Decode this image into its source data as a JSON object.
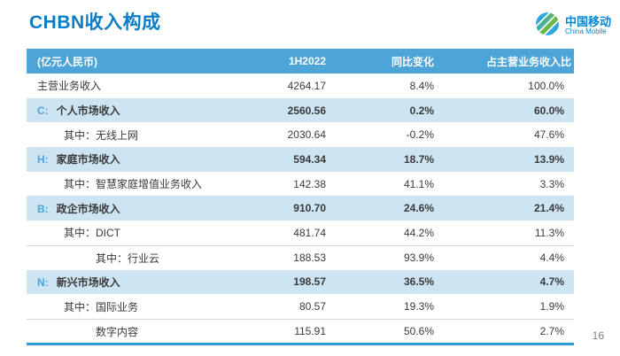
{
  "page": {
    "title": "CHBN收入构成",
    "page_number": "16"
  },
  "logo": {
    "cn": "中国移动",
    "en": "China Mobile",
    "icon": "china-mobile-swirl-logo"
  },
  "colors": {
    "title_blue": "#0b7dc6",
    "header_bg": "#4da4d6",
    "highlight_row_bg": "#cde4f3",
    "bottom_rule": "#2e9fd9",
    "logo_blue": "#0086d0",
    "logo_green": "#6cb84a"
  },
  "table": {
    "headers": [
      "(亿元人民币)",
      "1H2022",
      "同比变化",
      "占主营业务收入比"
    ],
    "rows": [
      {
        "prefix": "",
        "label": "主营业务收入",
        "indent": 0,
        "highlight": false,
        "sep": false,
        "values": [
          "4264.17",
          "8.4%",
          "100.0%"
        ]
      },
      {
        "prefix": "C:",
        "label": "个人市场收入",
        "indent": 0,
        "highlight": true,
        "sep": false,
        "values": [
          "2560.56",
          "0.2%",
          "60.0%"
        ]
      },
      {
        "prefix": "",
        "label": "其中：无线上网",
        "indent": 1,
        "highlight": false,
        "sep": false,
        "values": [
          "2030.64",
          "-0.2%",
          "47.6%"
        ]
      },
      {
        "prefix": "H:",
        "label": "家庭市场收入",
        "indent": 0,
        "highlight": true,
        "sep": false,
        "values": [
          "594.34",
          "18.7%",
          "13.9%"
        ]
      },
      {
        "prefix": "",
        "label": "其中：智慧家庭增值业务收入",
        "indent": 1,
        "highlight": false,
        "sep": false,
        "values": [
          "142.38",
          "41.1%",
          "3.3%"
        ]
      },
      {
        "prefix": "B:",
        "label": "政企市场收入",
        "indent": 0,
        "highlight": true,
        "sep": false,
        "values": [
          "910.70",
          "24.6%",
          "21.4%"
        ]
      },
      {
        "prefix": "",
        "label": "其中：DICT",
        "indent": 1,
        "highlight": false,
        "sep": false,
        "values": [
          "481.74",
          "44.2%",
          "11.3%"
        ]
      },
      {
        "prefix": "",
        "label": "其中：行业云",
        "indent": 2,
        "highlight": false,
        "sep": true,
        "values": [
          "188.53",
          "93.9%",
          "4.4%"
        ]
      },
      {
        "prefix": "N:",
        "label": "新兴市场收入",
        "indent": 0,
        "highlight": true,
        "sep": false,
        "values": [
          "198.57",
          "36.5%",
          "4.7%"
        ]
      },
      {
        "prefix": "",
        "label": "其中：国际业务",
        "indent": 1,
        "highlight": false,
        "sep": false,
        "values": [
          "80.57",
          "19.3%",
          "1.9%"
        ]
      },
      {
        "prefix": "",
        "label": "数字内容",
        "indent": 2,
        "highlight": false,
        "sep": true,
        "values": [
          "115.91",
          "50.6%",
          "2.7%"
        ]
      }
    ]
  }
}
